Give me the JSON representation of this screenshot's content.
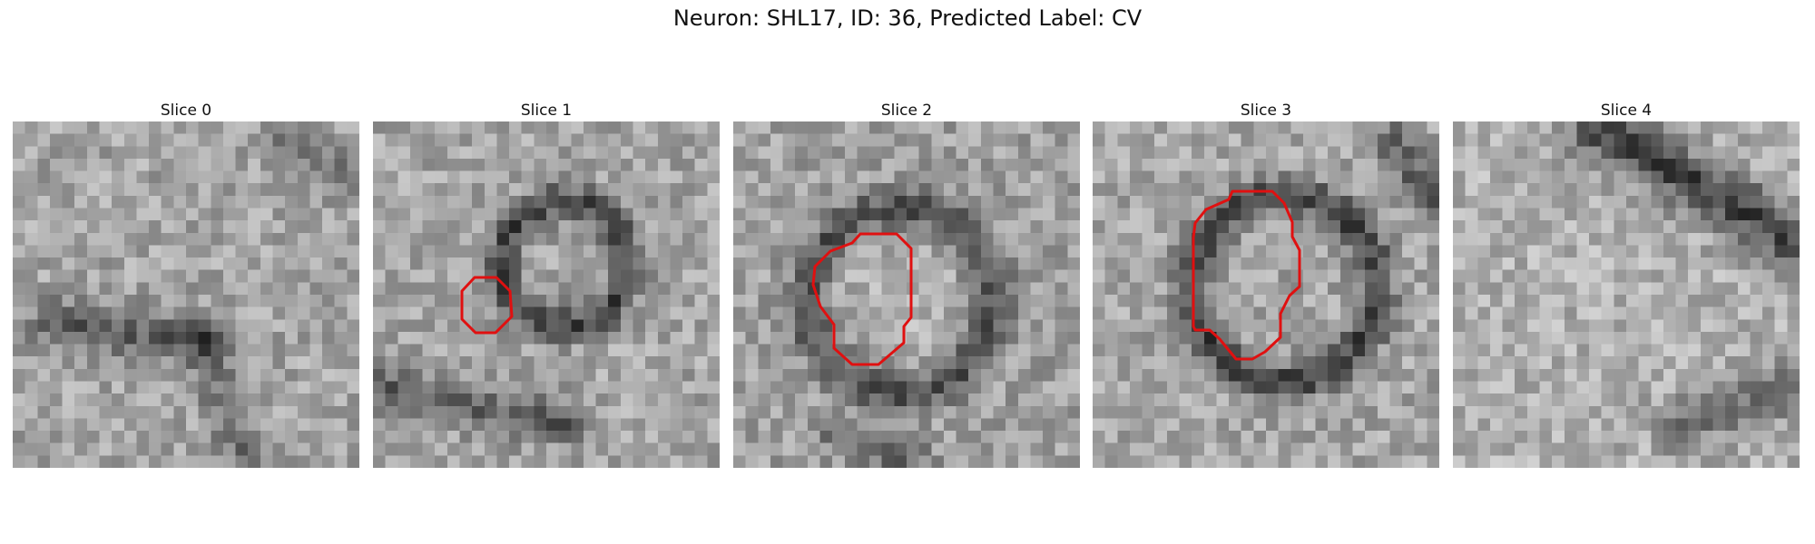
{
  "figure": {
    "title": "Neuron: SHL17, ID: 36, Predicted Label: CV"
  },
  "panels": [
    {
      "title": "Slice 0",
      "contour": false
    },
    {
      "title": "Slice 1",
      "contour": true
    },
    {
      "title": "Slice 2",
      "contour": true
    },
    {
      "title": "Slice 3",
      "contour": true
    },
    {
      "title": "Slice 4",
      "contour": false
    }
  ],
  "colors": {
    "contour": "#e01010",
    "colormap": "grayscale"
  }
}
